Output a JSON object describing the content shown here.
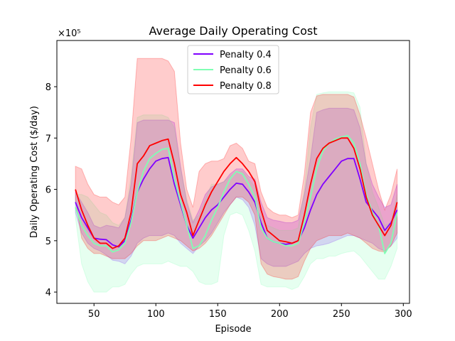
{
  "chart_data": {
    "type": "line",
    "title": "Average Daily Operating Cost",
    "xlabel": "Episode",
    "ylabel": "Daily Operating Cost ($/day)",
    "offset_text": "×10⁵",
    "xlim": [
      20,
      305
    ],
    "ylim": [
      3.78,
      8.9
    ],
    "xticks": [
      50,
      100,
      150,
      200,
      250,
      300
    ],
    "yticks": [
      4,
      5,
      6,
      7,
      8
    ],
    "legend_position": "upper-center",
    "grid": false,
    "x": [
      35,
      40,
      45,
      50,
      55,
      60,
      65,
      70,
      75,
      80,
      85,
      90,
      95,
      100,
      105,
      110,
      115,
      120,
      125,
      130,
      135,
      140,
      145,
      150,
      155,
      160,
      165,
      170,
      175,
      180,
      185,
      190,
      195,
      200,
      205,
      210,
      215,
      220,
      225,
      230,
      235,
      240,
      245,
      250,
      255,
      260,
      265,
      270,
      275,
      280,
      285,
      290,
      295
    ],
    "series": [
      {
        "name": "Penalty 0.4",
        "color": "#8000ff",
        "mean": [
          5.75,
          5.45,
          5.25,
          5.05,
          5.03,
          5.02,
          4.92,
          4.88,
          5.0,
          5.4,
          5.95,
          6.2,
          6.4,
          6.55,
          6.6,
          6.62,
          6.1,
          5.7,
          5.3,
          5.05,
          5.25,
          5.45,
          5.6,
          5.7,
          5.85,
          6.0,
          6.12,
          6.1,
          5.95,
          5.75,
          5.35,
          5.05,
          4.98,
          4.95,
          4.93,
          4.95,
          5.0,
          5.25,
          5.6,
          5.9,
          6.1,
          6.25,
          6.4,
          6.55,
          6.6,
          6.6,
          6.2,
          5.75,
          5.6,
          5.45,
          5.2,
          5.35,
          5.6
        ],
        "lower": [
          5.55,
          5.15,
          4.95,
          4.85,
          4.8,
          4.72,
          4.62,
          4.6,
          4.55,
          4.7,
          4.95,
          5.05,
          5.1,
          5.1,
          5.1,
          5.15,
          5.1,
          4.95,
          4.85,
          4.75,
          4.9,
          5.0,
          5.15,
          5.35,
          5.55,
          5.7,
          5.85,
          5.8,
          5.65,
          5.3,
          4.65,
          4.55,
          4.5,
          4.5,
          4.5,
          4.55,
          4.6,
          4.75,
          4.85,
          4.9,
          4.92,
          4.95,
          5.0,
          5.05,
          5.1,
          5.1,
          5.05,
          5.0,
          4.95,
          4.85,
          4.8,
          4.9,
          5.05
        ],
        "upper": [
          5.95,
          5.75,
          5.55,
          5.3,
          5.25,
          5.3,
          5.28,
          5.25,
          5.45,
          6.1,
          7.3,
          7.35,
          7.35,
          7.35,
          7.35,
          7.35,
          7.3,
          6.45,
          5.75,
          5.35,
          5.6,
          5.9,
          6.05,
          6.1,
          6.15,
          6.3,
          6.4,
          6.4,
          6.25,
          6.2,
          5.75,
          5.45,
          5.4,
          5.38,
          5.35,
          5.35,
          5.4,
          5.9,
          6.6,
          7.5,
          7.55,
          7.58,
          7.58,
          7.58,
          7.58,
          7.55,
          7.2,
          6.5,
          6.1,
          5.85,
          5.65,
          5.7,
          6.1
        ]
      },
      {
        "name": "Penalty 0.6",
        "color": "#80ffb4",
        "mean": [
          5.65,
          5.3,
          5.1,
          4.95,
          4.9,
          4.9,
          4.78,
          4.82,
          4.95,
          5.35,
          5.95,
          6.35,
          6.6,
          6.7,
          6.78,
          6.8,
          6.2,
          5.75,
          5.3,
          4.85,
          4.9,
          5.1,
          5.4,
          5.65,
          5.95,
          6.2,
          6.35,
          6.3,
          6.1,
          5.85,
          5.25,
          5.05,
          4.98,
          4.95,
          4.9,
          4.9,
          4.95,
          5.35,
          5.85,
          6.4,
          6.75,
          6.9,
          6.98,
          7.02,
          7.05,
          6.9,
          6.5,
          5.9,
          5.55,
          5.3,
          4.75,
          4.95,
          5.55
        ],
        "lower": [
          5.45,
          4.55,
          4.2,
          4.0,
          4.0,
          4.0,
          4.1,
          4.1,
          4.15,
          4.35,
          4.5,
          4.55,
          4.55,
          4.55,
          4.55,
          4.6,
          4.55,
          4.5,
          4.5,
          4.4,
          4.2,
          4.15,
          4.15,
          4.2,
          5.1,
          5.5,
          5.55,
          5.5,
          5.2,
          4.8,
          4.15,
          4.1,
          4.1,
          4.1,
          4.1,
          4.05,
          4.1,
          4.3,
          4.55,
          4.65,
          4.65,
          4.7,
          4.7,
          4.75,
          4.78,
          4.8,
          4.7,
          4.55,
          4.4,
          4.25,
          4.25,
          4.5,
          4.85
        ],
        "upper": [
          5.9,
          5.9,
          5.85,
          5.7,
          5.55,
          5.5,
          5.35,
          5.3,
          5.45,
          6.25,
          7.4,
          7.45,
          7.45,
          7.45,
          7.45,
          7.4,
          7.2,
          6.4,
          5.8,
          5.4,
          5.5,
          5.8,
          6.1,
          6.1,
          6.15,
          6.25,
          6.35,
          6.35,
          6.2,
          6.05,
          5.5,
          5.3,
          5.25,
          5.2,
          5.2,
          5.2,
          5.25,
          6.0,
          7.2,
          7.85,
          7.88,
          7.9,
          7.9,
          7.9,
          7.9,
          7.88,
          7.6,
          6.5,
          5.95,
          5.65,
          5.3,
          5.35,
          5.9
        ]
      },
      {
        "name": "Penalty 0.8",
        "color": "#ff0000",
        "mean": [
          6.0,
          5.6,
          5.3,
          5.05,
          4.95,
          4.95,
          4.85,
          4.9,
          5.05,
          5.55,
          6.5,
          6.65,
          6.85,
          6.9,
          6.95,
          6.98,
          6.5,
          5.9,
          5.55,
          5.1,
          5.4,
          5.7,
          5.95,
          6.15,
          6.35,
          6.5,
          6.62,
          6.5,
          6.35,
          6.15,
          5.6,
          5.2,
          5.1,
          5.0,
          4.98,
          4.95,
          5.0,
          5.5,
          6.1,
          6.6,
          6.8,
          6.9,
          6.95,
          7.0,
          7.0,
          6.8,
          6.4,
          5.85,
          5.5,
          5.3,
          5.1,
          5.3,
          5.75
        ],
        "lower": [
          5.8,
          5.05,
          4.85,
          4.75,
          4.75,
          4.7,
          4.65,
          4.65,
          4.65,
          4.75,
          4.9,
          5.0,
          5.0,
          5.0,
          5.05,
          5.1,
          5.05,
          5.0,
          4.9,
          4.8,
          4.85,
          4.95,
          5.1,
          5.3,
          5.5,
          5.7,
          5.85,
          5.85,
          5.75,
          5.5,
          4.55,
          4.35,
          4.3,
          4.28,
          4.25,
          4.25,
          4.3,
          4.6,
          4.85,
          5.0,
          5.05,
          5.1,
          5.1,
          5.1,
          5.15,
          5.1,
          5.05,
          4.95,
          4.85,
          4.8,
          4.78,
          4.9,
          5.15
        ],
        "upper": [
          6.45,
          6.4,
          6.1,
          5.9,
          5.85,
          5.85,
          5.75,
          5.7,
          5.85,
          7.0,
          8.55,
          8.55,
          8.55,
          8.55,
          8.55,
          8.5,
          8.3,
          6.9,
          6.0,
          5.65,
          6.35,
          6.5,
          6.55,
          6.55,
          6.6,
          6.85,
          6.9,
          6.8,
          6.55,
          6.5,
          5.95,
          5.65,
          5.55,
          5.5,
          5.5,
          5.45,
          5.5,
          6.3,
          7.5,
          7.82,
          7.85,
          7.85,
          7.85,
          7.85,
          7.85,
          7.8,
          7.45,
          7.0,
          6.5,
          6.0,
          5.6,
          5.9,
          6.4
        ]
      }
    ]
  }
}
